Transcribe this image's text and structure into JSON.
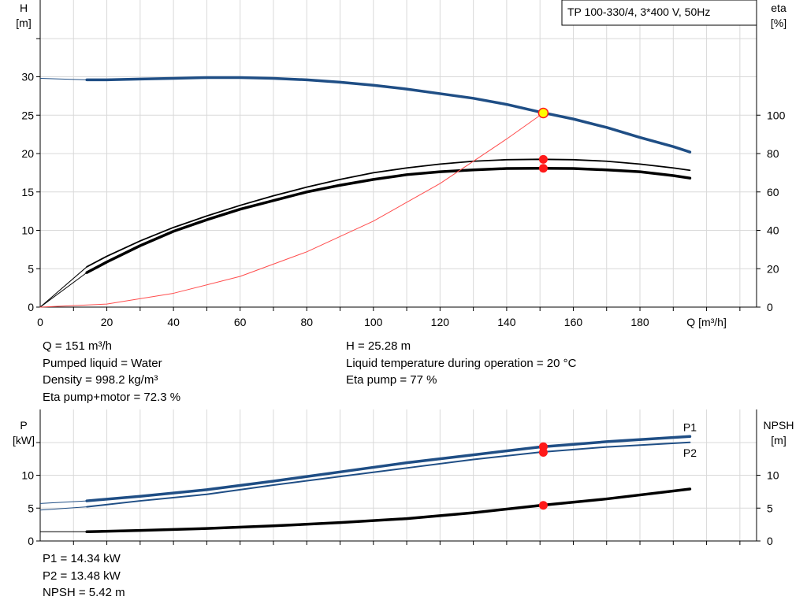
{
  "title_box": "TP 100-330/4, 3*400 V, 50Hz",
  "colors": {
    "head": "#1f4e85",
    "power": "#1f4e85",
    "efficiency": "#000000",
    "system": "#ff4d4d",
    "marker": "#ff1a1a",
    "duty_point": "#ffff00",
    "grid": "#d9d9d9"
  },
  "chart_data": [
    {
      "type": "line",
      "name": "head-efficiency",
      "xlabel": "Q [m³/h]",
      "ylabel_left": [
        "H",
        "[m]"
      ],
      "ylabel_right": [
        "eta",
        "[%]"
      ],
      "xlim": [
        0,
        215
      ],
      "ylim_left": [
        0,
        40
      ],
      "ylim_right": [
        0,
        160
      ],
      "x_ticks": [
        0,
        20,
        40,
        60,
        80,
        100,
        120,
        140,
        160,
        180
      ],
      "y_ticks_left": [
        0,
        5,
        10,
        15,
        20,
        25,
        30
      ],
      "y_ticks_right": [
        0,
        20,
        40,
        60,
        80,
        100
      ],
      "grid": true,
      "series": [
        {
          "key": "head",
          "axis": "left",
          "width": 3.5,
          "lead_in": [
            [
              0,
              29.8
            ],
            [
              14,
              29.6
            ]
          ],
          "x": [
            14,
            20,
            30,
            40,
            50,
            60,
            70,
            80,
            90,
            100,
            110,
            120,
            130,
            140,
            150,
            160,
            170,
            180,
            190,
            195
          ],
          "y": [
            29.6,
            29.6,
            29.7,
            29.8,
            29.9,
            29.9,
            29.8,
            29.6,
            29.3,
            28.9,
            28.4,
            27.8,
            27.2,
            26.4,
            25.4,
            24.5,
            23.4,
            22.1,
            20.9,
            20.2
          ]
        },
        {
          "key": "efficiency",
          "name": "eta pump",
          "axis": "right",
          "width": 1.8,
          "lead_in": [
            [
              0,
              0
            ],
            [
              14,
              21
            ]
          ],
          "x": [
            14,
            20,
            30,
            40,
            50,
            60,
            70,
            80,
            90,
            100,
            110,
            120,
            130,
            140,
            150,
            160,
            170,
            180,
            190,
            195
          ],
          "y": [
            21,
            26.5,
            34.5,
            41.5,
            47.5,
            53,
            58,
            62.5,
            66.5,
            70,
            72.5,
            74.5,
            76,
            76.8,
            77,
            76.8,
            76,
            74.5,
            72.5,
            71.3
          ]
        },
        {
          "key": "efficiency",
          "name": "eta pump+motor",
          "axis": "right",
          "width": 3.5,
          "lead_in": [
            [
              0,
              0
            ],
            [
              14,
              18
            ]
          ],
          "x": [
            14,
            20,
            30,
            40,
            50,
            60,
            70,
            80,
            90,
            100,
            110,
            120,
            130,
            140,
            150,
            160,
            170,
            180,
            190,
            195
          ],
          "y": [
            18,
            23.5,
            32,
            39.5,
            45.5,
            51,
            55.5,
            60,
            63.5,
            66.5,
            69,
            70.5,
            71.5,
            72.2,
            72.3,
            72.2,
            71.5,
            70.5,
            68.5,
            67.2
          ]
        },
        {
          "key": "system",
          "name": "system curve",
          "axis": "left",
          "width": 1,
          "x": [
            0,
            20,
            40,
            60,
            80,
            100,
            120,
            140,
            151
          ],
          "y": [
            0,
            0.4,
            1.8,
            4,
            7.2,
            11.2,
            16.1,
            21.9,
            25.28
          ]
        }
      ],
      "markers": [
        {
          "axis": "left",
          "x": 151,
          "y": 25.28,
          "style": "duty"
        },
        {
          "axis": "right",
          "x": 151,
          "y": 77,
          "style": "dot"
        },
        {
          "axis": "right",
          "x": 151,
          "y": 72.3,
          "style": "dot"
        }
      ]
    },
    {
      "type": "line",
      "name": "power-npsh",
      "ylabel_left": [
        "P",
        "[kW]"
      ],
      "ylabel_right": [
        "NPSH",
        "[m]"
      ],
      "xlim": [
        0,
        215
      ],
      "ylim_left": [
        0,
        20
      ],
      "ylim_right": [
        0,
        20
      ],
      "y_ticks_left": [
        0,
        5,
        10
      ],
      "y_ticks_right": [
        0,
        5,
        10
      ],
      "grid": true,
      "series": [
        {
          "key": "power",
          "name": "P1",
          "axis": "left",
          "width": 3.5,
          "lead_in": [
            [
              0,
              5.7
            ],
            [
              14,
              6.1
            ]
          ],
          "x": [
            14,
            30,
            50,
            70,
            90,
            110,
            130,
            150,
            170,
            195
          ],
          "y": [
            6.1,
            6.8,
            7.8,
            9.1,
            10.5,
            11.9,
            13.1,
            14.3,
            15.1,
            15.9
          ]
        },
        {
          "key": "power",
          "name": "P2",
          "axis": "left",
          "width": 2,
          "lead_in": [
            [
              0,
              4.7
            ],
            [
              14,
              5.2
            ]
          ],
          "x": [
            14,
            30,
            50,
            70,
            90,
            110,
            130,
            150,
            170,
            195
          ],
          "y": [
            5.2,
            6.1,
            7.1,
            8.5,
            9.8,
            11.1,
            12.4,
            13.5,
            14.3,
            15.0
          ]
        },
        {
          "key": "efficiency",
          "name": "NPSH",
          "axis": "right",
          "width": 3.5,
          "lead_in": [
            [
              0,
              1.4
            ],
            [
              14,
              1.4
            ]
          ],
          "x": [
            14,
            30,
            50,
            70,
            90,
            110,
            130,
            150,
            170,
            195
          ],
          "y": [
            1.4,
            1.6,
            1.9,
            2.3,
            2.8,
            3.4,
            4.3,
            5.4,
            6.4,
            7.9
          ]
        }
      ],
      "series_labels": [
        {
          "text": "P1",
          "x": 195,
          "y": 17.3
        },
        {
          "text": "P2",
          "x": 195,
          "y": 13.4
        }
      ],
      "markers": [
        {
          "axis": "left",
          "x": 151,
          "y": 14.34,
          "style": "dot"
        },
        {
          "axis": "left",
          "x": 151,
          "y": 13.48,
          "style": "dot"
        },
        {
          "axis": "right",
          "x": 151,
          "y": 5.42,
          "style": "dot"
        }
      ]
    }
  ],
  "duty_info": {
    "left": [
      "Q = 151 m³/h",
      "Pumped liquid = Water",
      "Density = 998.2 kg/m³",
      "Eta pump+motor = 72.3 %"
    ],
    "right": [
      "H = 25.28 m",
      "Liquid temperature during operation = 20 °C",
      "Eta pump = 77 %"
    ]
  },
  "power_info": [
    "P1 = 14.34 kW",
    "P2 = 13.48 kW",
    "NPSH = 5.42 m"
  ]
}
